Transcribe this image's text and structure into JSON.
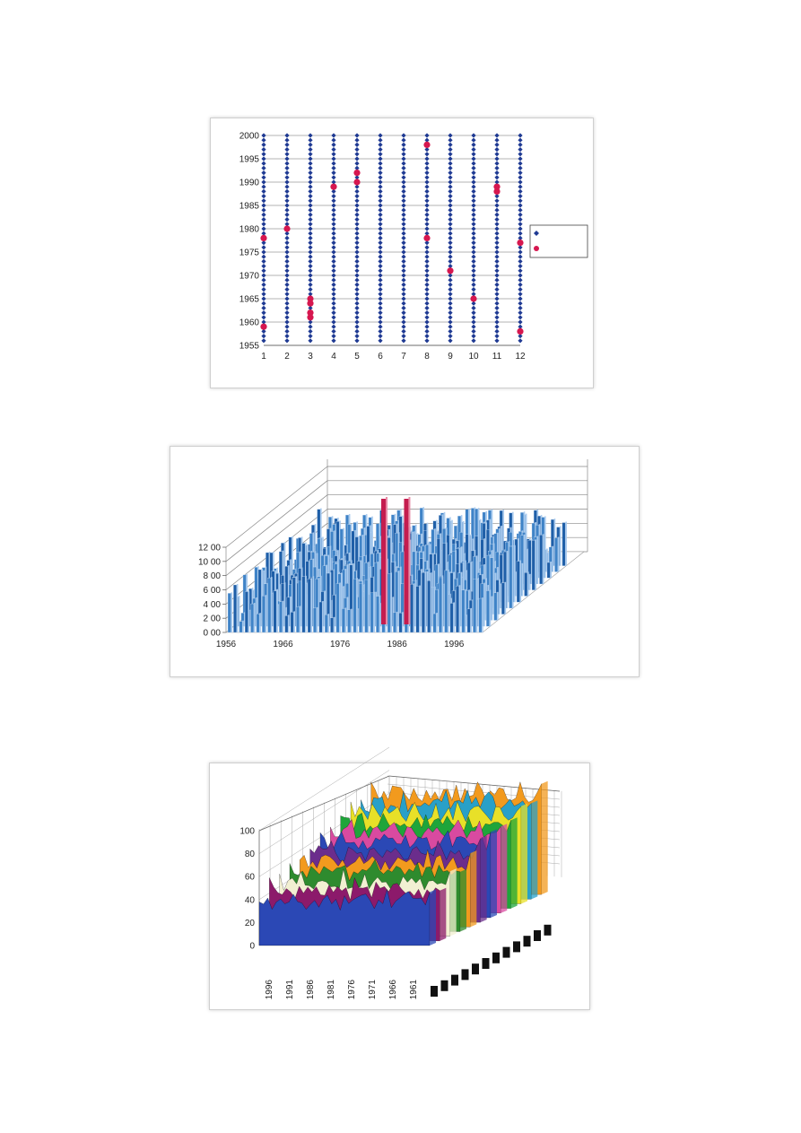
{
  "chart_data": [
    {
      "type": "scatter",
      "x": [
        1,
        2,
        3,
        4,
        5,
        6,
        7,
        8,
        9,
        10,
        11,
        12
      ],
      "ylim": [
        1955,
        2000
      ],
      "yticks": [
        "1955",
        "1960",
        "1965",
        "1970",
        "1975",
        "1980",
        "1985",
        "1990",
        "1995",
        "2000"
      ],
      "xticks": [
        "1",
        "2",
        "3",
        "4",
        "5",
        "6",
        "7",
        "8",
        "9",
        "10",
        "11",
        "12"
      ],
      "grid": true,
      "legend_position": "right",
      "series": [
        {
          "color": "#1f3a93",
          "marker": "diamond",
          "description_of_points": "every month 1-12, every year 1956-2000",
          "year_range": [
            1956,
            2000
          ]
        },
        {
          "color": "#d6174f",
          "marker": "circle",
          "points": [
            [
              1,
              1959
            ],
            [
              1,
              1978
            ],
            [
              2,
              1980
            ],
            [
              3,
              1961
            ],
            [
              3,
              1962
            ],
            [
              3,
              1964
            ],
            [
              3,
              1965
            ],
            [
              4,
              1989
            ],
            [
              5,
              1990
            ],
            [
              5,
              1992
            ],
            [
              8,
              1978
            ],
            [
              8,
              1998
            ],
            [
              9,
              1971
            ],
            [
              10,
              1965
            ],
            [
              11,
              1988
            ],
            [
              11,
              1989
            ],
            [
              12,
              1958
            ],
            [
              12,
              1977
            ]
          ]
        }
      ]
    },
    {
      "type": "bar",
      "view": "3d",
      "yticks": [
        "0 00",
        "2 00",
        "4 00",
        "6 00",
        "8 00",
        "10 00",
        "12 00"
      ],
      "xticks": [
        "1956",
        "1966",
        "1976",
        "1986",
        "1996"
      ],
      "ylim": [
        0,
        12
      ],
      "years": [
        1956,
        2000
      ],
      "bar_color": "#3f83c7",
      "highlight_color": "#c41d4f",
      "highlight_bars": [
        {
          "year": 1977,
          "value": 15
        },
        {
          "year": 1981,
          "value": 15
        }
      ]
    },
    {
      "type": "area",
      "view": "3d",
      "yticks": [
        "0",
        "20",
        "40",
        "60",
        "80",
        "100"
      ],
      "ylim": [
        0,
        100
      ],
      "xticks": [
        "1996",
        "1991",
        "1986",
        "1981",
        "1976",
        "1971",
        "1966",
        "1961"
      ],
      "series_colors": [
        "#2b48b5",
        "#8c1a6b",
        "#f2f0d2",
        "#2e8b2e",
        "#f29a1e",
        "#6b2d8c",
        "#2b48b5",
        "#d94aa0",
        "#1fa53a",
        "#e8e028",
        "#29a0c8",
        "#f29a1e"
      ]
    }
  ]
}
